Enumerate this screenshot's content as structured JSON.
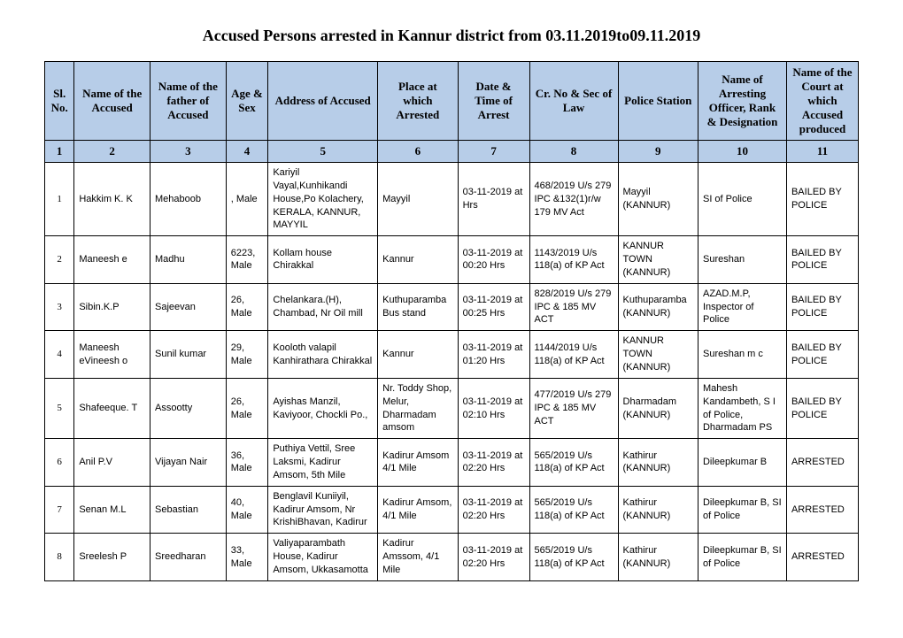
{
  "title": "Accused Persons arrested in   Kannur   district from   03.11.2019to09.11.2019",
  "header_bg": "#b7cde8",
  "border_color": "#000000",
  "columns": [
    {
      "label": "Sl. No.",
      "num": "1"
    },
    {
      "label": "Name of the Accused",
      "num": "2"
    },
    {
      "label": "Name of the father of Accused",
      "num": "3"
    },
    {
      "label": "Age & Sex",
      "num": "4"
    },
    {
      "label": "Address of Accused",
      "num": "5"
    },
    {
      "label": "Place at which Arrested",
      "num": "6"
    },
    {
      "label": "Date & Time of Arrest",
      "num": "7"
    },
    {
      "label": "Cr. No & Sec of Law",
      "num": "8"
    },
    {
      "label": "Police Station",
      "num": "9"
    },
    {
      "label": "Name of Arresting Officer, Rank & Designation",
      "num": "10"
    },
    {
      "label": "Name of the Court at which Accused produced",
      "num": "11"
    }
  ],
  "rows": [
    {
      "sl": "1",
      "name": "Hakkim K. K",
      "father": "Mehaboob",
      "age_sex": ", Male",
      "address": "Kariyil Vayal,Kunhikandi House,Po Kolachery, KERALA, KANNUR, MAYYIL",
      "place": "Mayyil",
      "datetime": "03-11-2019 at  Hrs",
      "crno": "468/2019 U/s 279 IPC &132(1)r/w 179 MV Act",
      "station": "Mayyil (KANNUR)",
      "officer": "SI of Police",
      "court": "BAILED BY POLICE"
    },
    {
      "sl": "2",
      "name": "Maneesh e",
      "father": "Madhu",
      "age_sex": "6223, Male",
      "address": "Kollam house Chirakkal",
      "place": "Kannur",
      "datetime": "03-11-2019 at 00:20 Hrs",
      "crno": "1143/2019 U/s 118(a) of KP Act",
      "station": "KANNUR TOWN (KANNUR)",
      "officer": "Sureshan",
      "court": "BAILED BY POLICE"
    },
    {
      "sl": "3",
      "name": "Sibin.K.P",
      "father": "Sajeevan",
      "age_sex": "26, Male",
      "address": "Chelankara.(H), Chambad, Nr Oil mill",
      "place": "Kuthuparamba Bus stand",
      "datetime": "03-11-2019 at 00:25 Hrs",
      "crno": "828/2019 U/s 279 IPC & 185 MV ACT",
      "station": "Kuthuparamba (KANNUR)",
      "officer": "AZAD.M.P, Inspector of Police",
      "court": "BAILED BY POLICE"
    },
    {
      "sl": "4",
      "name": "Maneesh eVineesh o",
      "father": "Sunil kumar",
      "age_sex": "29, Male",
      "address": "Kooloth valapil Kanhirathara Chirakkal",
      "place": "Kannur",
      "datetime": "03-11-2019 at 01:20 Hrs",
      "crno": "1144/2019 U/s 118(a) of KP Act",
      "station": "KANNUR TOWN (KANNUR)",
      "officer": "Sureshan m c",
      "court": "BAILED BY POLICE"
    },
    {
      "sl": "5",
      "name": "Shafeeque. T",
      "father": "Assootty",
      "age_sex": "26, Male",
      "address": "Ayishas Manzil, Kaviyoor, Chockli Po.,",
      "place": "Nr. Toddy Shop, Melur, Dharmadam amsom",
      "datetime": "03-11-2019 at 02:10 Hrs",
      "crno": "477/2019 U/s 279 IPC & 185 MV ACT",
      "station": "Dharmadam (KANNUR)",
      "officer": "Mahesh Kandambeth, S I of Police, Dharmadam PS",
      "court": "BAILED BY POLICE"
    },
    {
      "sl": "6",
      "name": "Anil P.V",
      "father": "Vijayan Nair",
      "age_sex": "36, Male",
      "address": "Puthiya Vettil, Sree Laksmi, Kadirur Amsom, 5th Mile",
      "place": "Kadirur Amsom 4/1 Mile",
      "datetime": "03-11-2019 at 02:20 Hrs",
      "crno": "565/2019 U/s 118(a) of KP Act",
      "station": "Kathirur (KANNUR)",
      "officer": "Dileepkumar B",
      "court": "ARRESTED"
    },
    {
      "sl": "7",
      "name": "Senan M.L",
      "father": "Sebastian",
      "age_sex": "40, Male",
      "address": "Benglavil Kuniiyil, Kadirur Amsom, Nr KrishiBhavan, Kadirur",
      "place": "Kadirur Amsom, 4/1 Mile",
      "datetime": "03-11-2019 at 02:20 Hrs",
      "crno": "565/2019 U/s 118(a) of KP Act",
      "station": "Kathirur (KANNUR)",
      "officer": "Dileepkumar B, SI of Police",
      "court": "ARRESTED"
    },
    {
      "sl": "8",
      "name": "Sreelesh P",
      "father": "Sreedharan",
      "age_sex": "33, Male",
      "address": "Valiyaparambath House, Kadirur Amsom, Ukkasamotta",
      "place": "Kadirur Amssom, 4/1 Mile",
      "datetime": "03-11-2019 at 02:20 Hrs",
      "crno": "565/2019 U/s 118(a) of KP Act",
      "station": "Kathirur (KANNUR)",
      "officer": "Dileepkumar B, SI of Police",
      "court": "ARRESTED"
    }
  ]
}
